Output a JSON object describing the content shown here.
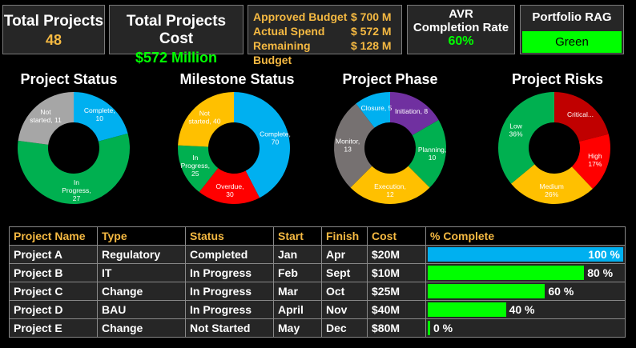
{
  "kpis": {
    "total_projects": {
      "label": "Total Projects",
      "value": "48"
    },
    "total_cost": {
      "label": "Total Projects Cost",
      "value": "$572 Million"
    },
    "budget": {
      "approved_label": "Approved Budget",
      "approved_value": "$ 700 M",
      "actual_label": "Actual Spend",
      "actual_value": "$ 572 M",
      "remaining_label": "Remaining Budget",
      "remaining_value": "$ 128 M"
    },
    "completion": {
      "label_line1": "AVR",
      "label_line2": "Completion Rate",
      "value": "60%"
    },
    "rag": {
      "label": "Portfolio RAG",
      "value": "Green",
      "color": "#00ff00"
    }
  },
  "donuts": [
    {
      "title": "Project Status",
      "slices": [
        {
          "label": "Complete,\n10",
          "value": 10,
          "color": "#00b0f0"
        },
        {
          "label": "In\nProgress,\n27",
          "value": 27,
          "color": "#00b050"
        },
        {
          "label": "Not\nstarted, 11",
          "value": 11,
          "color": "#a6a6a6"
        }
      ]
    },
    {
      "title": "Milestone Status",
      "slices": [
        {
          "label": "Complete,\n70",
          "value": 70,
          "color": "#00b0f0"
        },
        {
          "label": "Overdue,\n30",
          "value": 30,
          "color": "#ff0000"
        },
        {
          "label": "In\nProgress,\n25",
          "value": 25,
          "color": "#00b050"
        },
        {
          "label": "Not\nstarted, 40",
          "value": 40,
          "color": "#ffc000"
        }
      ]
    },
    {
      "title": "Project Phase",
      "slices": [
        {
          "label": "Initiation, 8",
          "value": 8,
          "color": "#7030a0"
        },
        {
          "label": "Planning,\n10",
          "value": 10,
          "color": "#00b050"
        },
        {
          "label": "Execution,\n12",
          "value": 12,
          "color": "#ffc000"
        },
        {
          "label": "Monitor,\n13",
          "value": 13,
          "color": "#767171"
        },
        {
          "label": "Closure, 5",
          "value": 5,
          "color": "#00b0f0"
        }
      ]
    },
    {
      "title": "Project Risks",
      "slices": [
        {
          "label": "Critical...",
          "value": 21,
          "color": "#c00000"
        },
        {
          "label": "High\n17%",
          "value": 17,
          "color": "#ff0000"
        },
        {
          "label": "Medium\n26%",
          "value": 26,
          "color": "#ffc000"
        },
        {
          "label": "Low\n36%",
          "value": 36,
          "color": "#00b050"
        }
      ]
    }
  ],
  "table": {
    "headers": [
      "Project Name",
      "Type",
      "Status",
      "Start",
      "Finish",
      "Cost",
      "% Complete"
    ],
    "rows": [
      {
        "name": "Project A",
        "type": "Regulatory",
        "status": "Completed",
        "start": "Jan",
        "finish": "Apr",
        "cost": "$20M",
        "pct": 100,
        "pct_label": "100 %",
        "bar_color": "#00b0f0"
      },
      {
        "name": "Project B",
        "type": "IT",
        "status": "In Progress",
        "start": "Feb",
        "finish": "Sept",
        "cost": "$10M",
        "pct": 80,
        "pct_label": "80 %",
        "bar_color": "#00ff00"
      },
      {
        "name": "Project C",
        "type": "Change",
        "status": "In Progress",
        "start": "Mar",
        "finish": "Oct",
        "cost": "$25M",
        "pct": 60,
        "pct_label": "60 %",
        "bar_color": "#00ff00"
      },
      {
        "name": "Project D",
        "type": "BAU",
        "status": "In Progress",
        "start": "April",
        "finish": "Nov",
        "cost": "$40M",
        "pct": 40,
        "pct_label": "40 %",
        "bar_color": "#00ff00"
      },
      {
        "name": "Project E",
        "type": "Change",
        "status": "Not Started",
        "start": "May",
        "finish": "Dec",
        "cost": "$80M",
        "pct": 0,
        "pct_label": "0 %",
        "bar_color": "#00ff00"
      }
    ]
  }
}
